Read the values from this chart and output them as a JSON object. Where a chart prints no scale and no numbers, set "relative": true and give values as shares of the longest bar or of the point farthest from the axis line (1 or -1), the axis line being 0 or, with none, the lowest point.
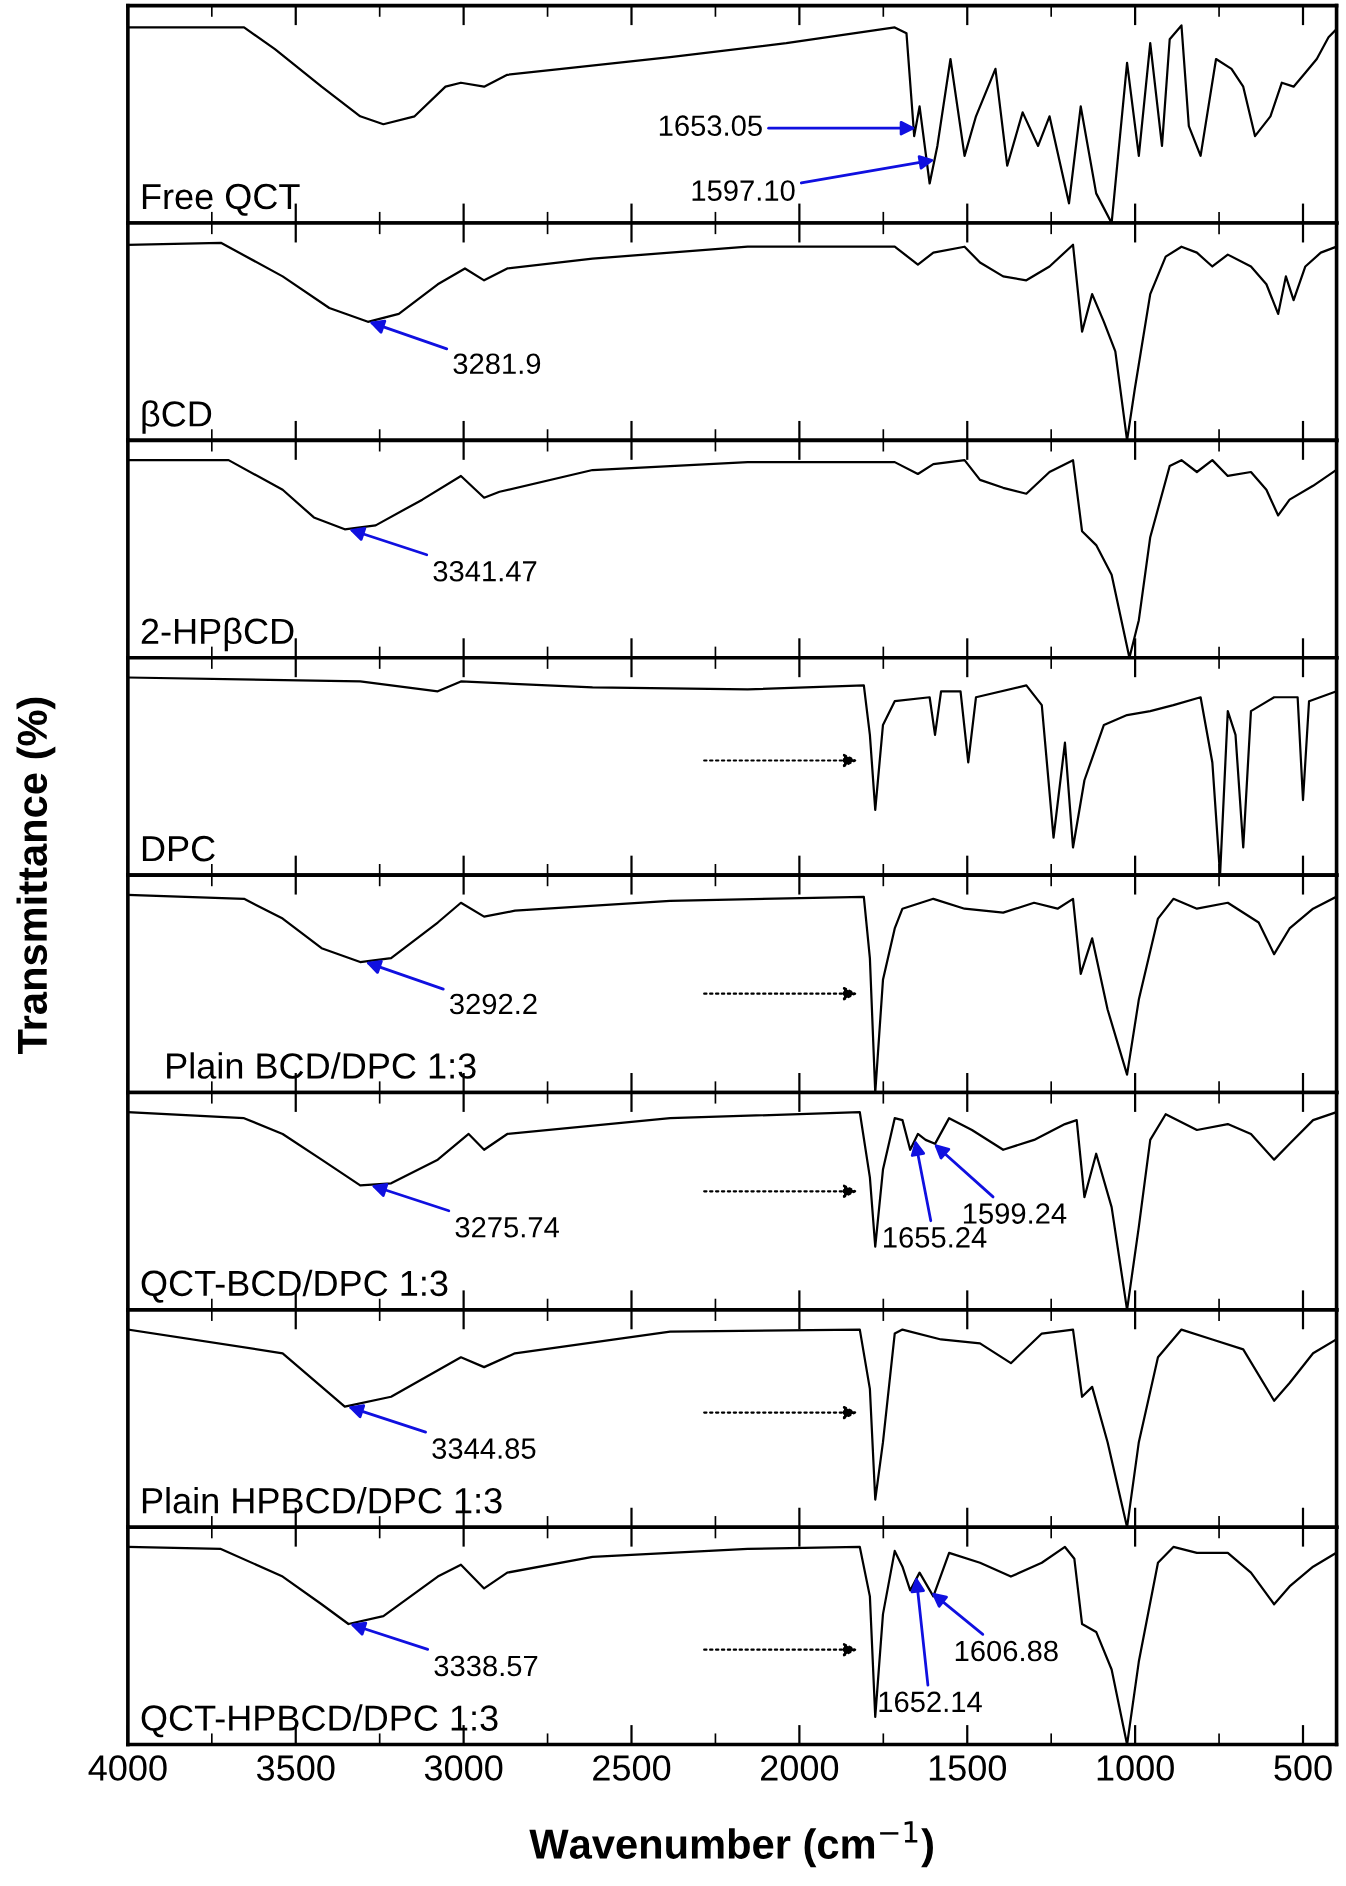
{
  "chart_data": [
    {
      "type": "line",
      "relative": true,
      "xlim": [
        4000,
        400
      ],
      "xticks": [
        4000,
        3500,
        3000,
        2500,
        2000,
        1500,
        1000,
        500
      ],
      "tick_labels": false,
      "annotations": [
        "Free QCT",
        {
          "text": "1653.05",
          "x": 1653.05,
          "y": 0.48
        },
        {
          "text": "1597.10",
          "x": 1597.1,
          "y": 0.32
        }
      ],
      "series": [
        {
          "color": "#000000",
          "x": [
            4000,
            3654,
            3562,
            3423,
            3308,
            3239,
            3146,
            3054,
            3008,
            2939,
            2870,
            2708,
            2385,
            2039,
            1716,
            1681,
            1658,
            1642,
            1612,
            1589,
            1550,
            1508,
            1474,
            1416,
            1381,
            1335,
            1289,
            1255,
            1197,
            1162,
            1116,
            1070,
            1024,
            989,
            955,
            920,
            897,
            862,
            840,
            805,
            759,
            713,
            678,
            643,
            597,
            563,
            528,
            493,
            459,
            424,
            401
          ],
          "values": [
            0.99,
            0.99,
            0.88,
            0.69,
            0.54,
            0.5,
            0.54,
            0.69,
            0.71,
            0.69,
            0.75,
            0.78,
            0.84,
            0.91,
            0.99,
            0.96,
            0.44,
            0.59,
            0.2,
            0.39,
            0.83,
            0.34,
            0.54,
            0.78,
            0.29,
            0.56,
            0.39,
            0.54,
            0.1,
            0.59,
            0.15,
            0.0,
            0.81,
            0.34,
            0.91,
            0.39,
            0.93,
            1.0,
            0.49,
            0.34,
            0.83,
            0.78,
            0.69,
            0.44,
            0.54,
            0.71,
            0.69,
            0.76,
            0.83,
            0.94,
            0.98
          ]
        }
      ]
    },
    {
      "type": "line",
      "relative": true,
      "xlim": [
        4000,
        400
      ],
      "xticks": [
        4000,
        3500,
        3000,
        2500,
        2000,
        1500,
        1000,
        500
      ],
      "tick_labels": false,
      "annotations": [
        "βCD",
        {
          "text": "3281.9",
          "x": 3281.9,
          "y": 0.6
        }
      ],
      "series": [
        {
          "color": "#000000",
          "x": [
            4000,
            3723,
            3539,
            3400,
            3285,
            3193,
            3077,
            2996,
            2939,
            2870,
            2616,
            2154,
            1716,
            1647,
            1601,
            1508,
            1462,
            1393,
            1324,
            1255,
            1185,
            1158,
            1128,
            1093,
            1059,
            1024,
            1001,
            955,
            909,
            862,
            816,
            770,
            724,
            655,
            609,
            574,
            551,
            528,
            493,
            447,
            401
          ],
          "values": [
            0.99,
            1.0,
            0.83,
            0.67,
            0.6,
            0.64,
            0.79,
            0.87,
            0.81,
            0.87,
            0.92,
            0.98,
            0.98,
            0.89,
            0.95,
            0.98,
            0.9,
            0.83,
            0.81,
            0.88,
            0.99,
            0.55,
            0.74,
            0.6,
            0.45,
            0.0,
            0.26,
            0.74,
            0.93,
            0.98,
            0.95,
            0.88,
            0.94,
            0.88,
            0.79,
            0.64,
            0.83,
            0.71,
            0.88,
            0.95,
            0.98
          ]
        }
      ]
    },
    {
      "type": "line",
      "relative": true,
      "xlim": [
        4000,
        400
      ],
      "xticks": [
        4000,
        3500,
        3000,
        2500,
        2000,
        1500,
        1000,
        500
      ],
      "tick_labels": false,
      "annotations": [
        "2-HPβCD",
        {
          "text": "3341.47",
          "x": 3341.47,
          "y": 0.65
        }
      ],
      "series": [
        {
          "color": "#000000",
          "x": [
            4000,
            3700,
            3539,
            3446,
            3354,
            3262,
            3123,
            3008,
            2939,
            2893,
            2616,
            2154,
            1716,
            1647,
            1601,
            1508,
            1462,
            1393,
            1324,
            1255,
            1185,
            1158,
            1116,
            1070,
            1017,
            989,
            955,
            897,
            862,
            816,
            770,
            724,
            655,
            609,
            574,
            540,
            470,
            401
          ],
          "values": [
            1.0,
            1.0,
            0.85,
            0.71,
            0.65,
            0.67,
            0.8,
            0.92,
            0.81,
            0.84,
            0.95,
            0.99,
            0.99,
            0.93,
            0.98,
            1.0,
            0.9,
            0.86,
            0.83,
            0.94,
            1.0,
            0.64,
            0.57,
            0.42,
            0.0,
            0.19,
            0.61,
            0.97,
            1.0,
            0.94,
            1.0,
            0.92,
            0.94,
            0.85,
            0.72,
            0.8,
            0.87,
            0.95
          ]
        }
      ]
    },
    {
      "type": "line",
      "relative": true,
      "xlim": [
        4000,
        400
      ],
      "xticks": [
        4000,
        3500,
        3000,
        2500,
        2000,
        1500,
        1000,
        500
      ],
      "tick_labels": false,
      "ylabel": "Transmittance (%)",
      "annotations": [
        "DPC"
      ],
      "series": [
        {
          "color": "#000000",
          "x": [
            4000,
            3308,
            3077,
            3008,
            2616,
            2154,
            1808,
            1790,
            1774,
            1751,
            1716,
            1612,
            1596,
            1578,
            1520,
            1497,
            1474,
            1324,
            1278,
            1243,
            1209,
            1185,
            1151,
            1093,
            1024,
            955,
            886,
            805,
            770,
            747,
            724,
            701,
            678,
            655,
            586,
            516,
            500,
            482,
            401
          ],
          "values": [
            1.0,
            0.98,
            0.93,
            0.98,
            0.95,
            0.94,
            0.96,
            0.71,
            0.33,
            0.76,
            0.88,
            0.9,
            0.71,
            0.93,
            0.93,
            0.57,
            0.9,
            0.96,
            0.86,
            0.19,
            0.67,
            0.14,
            0.48,
            0.76,
            0.81,
            0.83,
            0.86,
            0.9,
            0.57,
            0.0,
            0.83,
            0.71,
            0.14,
            0.83,
            0.9,
            0.9,
            0.38,
            0.88,
            0.93
          ]
        }
      ]
    },
    {
      "type": "line",
      "relative": true,
      "xlim": [
        4000,
        400
      ],
      "xticks": [
        4000,
        3500,
        3000,
        2500,
        2000,
        1500,
        1000,
        500
      ],
      "tick_labels": false,
      "annotations": [
        "Plain BCD/DPC 1:3",
        {
          "text": "3292.2",
          "x": 3292.2,
          "y": 0.66
        }
      ],
      "series": [
        {
          "color": "#000000",
          "x": [
            4000,
            3654,
            3539,
            3423,
            3308,
            3216,
            3077,
            3008,
            2939,
            2847,
            2385,
            1808,
            1790,
            1774,
            1751,
            1716,
            1693,
            1601,
            1508,
            1393,
            1301,
            1231,
            1185,
            1162,
            1128,
            1082,
            1024,
            989,
            932,
            886,
            816,
            724,
            632,
            586,
            540,
            470,
            401
          ],
          "values": [
            1.0,
            0.98,
            0.88,
            0.73,
            0.66,
            0.68,
            0.86,
            0.96,
            0.89,
            0.92,
            0.97,
            0.99,
            0.68,
            0.0,
            0.57,
            0.83,
            0.93,
            0.98,
            0.93,
            0.91,
            0.96,
            0.93,
            0.98,
            0.6,
            0.78,
            0.42,
            0.09,
            0.47,
            0.88,
            0.98,
            0.93,
            0.96,
            0.86,
            0.7,
            0.83,
            0.93,
            0.99
          ]
        }
      ]
    },
    {
      "type": "line",
      "relative": true,
      "xlim": [
        4000,
        400
      ],
      "xticks": [
        4000,
        3500,
        3000,
        2500,
        2000,
        1500,
        1000,
        500
      ],
      "tick_labels": false,
      "annotations": [
        "QCT-BCD/DPC 1:3",
        {
          "text": "3275.74",
          "x": 3275.74,
          "y": 0.63
        },
        {
          "text": "1655.24",
          "x": 1655.24,
          "y": 0.86
        },
        {
          "text": "1599.24",
          "x": 1599.24,
          "y": 0.84
        }
      ],
      "series": [
        {
          "color": "#000000",
          "x": [
            4000,
            3654,
            3539,
            3423,
            3308,
            3216,
            3077,
            2985,
            2939,
            2870,
            2385,
            1820,
            1790,
            1774,
            1751,
            1716,
            1693,
            1670,
            1647,
            1624,
            1596,
            1554,
            1486,
            1393,
            1301,
            1209,
            1174,
            1151,
            1116,
            1070,
            1024,
            989,
            955,
            909,
            816,
            724,
            655,
            586,
            540,
            470,
            401
          ],
          "values": [
            1.0,
            0.97,
            0.89,
            0.76,
            0.63,
            0.64,
            0.76,
            0.89,
            0.81,
            0.89,
            0.97,
            1.0,
            0.67,
            0.32,
            0.71,
            0.97,
            0.96,
            0.81,
            0.89,
            0.86,
            0.84,
            0.97,
            0.91,
            0.81,
            0.86,
            0.94,
            0.96,
            0.57,
            0.79,
            0.52,
            0.0,
            0.42,
            0.86,
            0.99,
            0.91,
            0.94,
            0.89,
            0.76,
            0.84,
            0.96,
            1.0
          ]
        }
      ]
    },
    {
      "type": "line",
      "relative": true,
      "xlim": [
        4000,
        400
      ],
      "xticks": [
        4000,
        3500,
        3000,
        2500,
        2000,
        1500,
        1000,
        500
      ],
      "tick_labels": false,
      "annotations": [
        "Plain HPBCD/DPC 1:3",
        {
          "text": "3344.85",
          "x": 3344.85,
          "y": 0.61
        }
      ],
      "series": [
        {
          "color": "#000000",
          "x": [
            4000,
            3539,
            3354,
            3216,
            3008,
            2939,
            2847,
            2385,
            1820,
            1790,
            1774,
            1751,
            1716,
            1693,
            1578,
            1462,
            1370,
            1278,
            1185,
            1158,
            1128,
            1082,
            1024,
            989,
            932,
            862,
            770,
            678,
            586,
            540,
            470,
            401
          ],
          "values": [
            1.0,
            0.88,
            0.61,
            0.66,
            0.86,
            0.81,
            0.88,
            0.99,
            1.0,
            0.7,
            0.14,
            0.43,
            0.98,
            1.0,
            0.95,
            0.93,
            0.83,
            0.98,
            1.0,
            0.66,
            0.71,
            0.43,
            0.0,
            0.43,
            0.86,
            1.0,
            0.95,
            0.9,
            0.64,
            0.73,
            0.88,
            0.95
          ]
        }
      ]
    },
    {
      "type": "line",
      "relative": true,
      "xlim": [
        4000,
        400
      ],
      "xticks": [
        4000,
        3500,
        3000,
        2500,
        2000,
        1500,
        1000,
        500
      ],
      "tick_labels": "x",
      "xlabel": "Wavenumber (cm$^{−1}$)",
      "annotations": [
        "QCT-HPBCD/DPC 1:3",
        {
          "text": "3338.57",
          "x": 3338.57,
          "y": 0.61
        },
        {
          "text": "1652.14",
          "x": 1652.14,
          "y": 0.85
        },
        {
          "text": "1606.88",
          "x": 1606.88,
          "y": 0.77
        }
      ],
      "series": [
        {
          "color": "#000000",
          "x": [
            4000,
            3723,
            3539,
            3423,
            3343,
            3239,
            3077,
            3008,
            2939,
            2870,
            2616,
            2154,
            1820,
            1790,
            1774,
            1751,
            1716,
            1693,
            1670,
            1642,
            1601,
            1554,
            1462,
            1370,
            1278,
            1209,
            1181,
            1158,
            1116,
            1070,
            1024,
            989,
            932,
            886,
            816,
            724,
            655,
            586,
            540,
            470,
            401
          ],
          "values": [
            1.0,
            0.99,
            0.85,
            0.71,
            0.61,
            0.65,
            0.85,
            0.91,
            0.79,
            0.87,
            0.95,
            0.99,
            1.0,
            0.75,
            0.14,
            0.66,
            0.98,
            0.9,
            0.78,
            0.87,
            0.75,
            0.97,
            0.92,
            0.85,
            0.92,
            1.0,
            0.94,
            0.61,
            0.57,
            0.38,
            0.0,
            0.42,
            0.92,
            1.0,
            0.97,
            0.97,
            0.87,
            0.71,
            0.8,
            0.9,
            0.97
          ]
        }
      ]
    }
  ]
}
